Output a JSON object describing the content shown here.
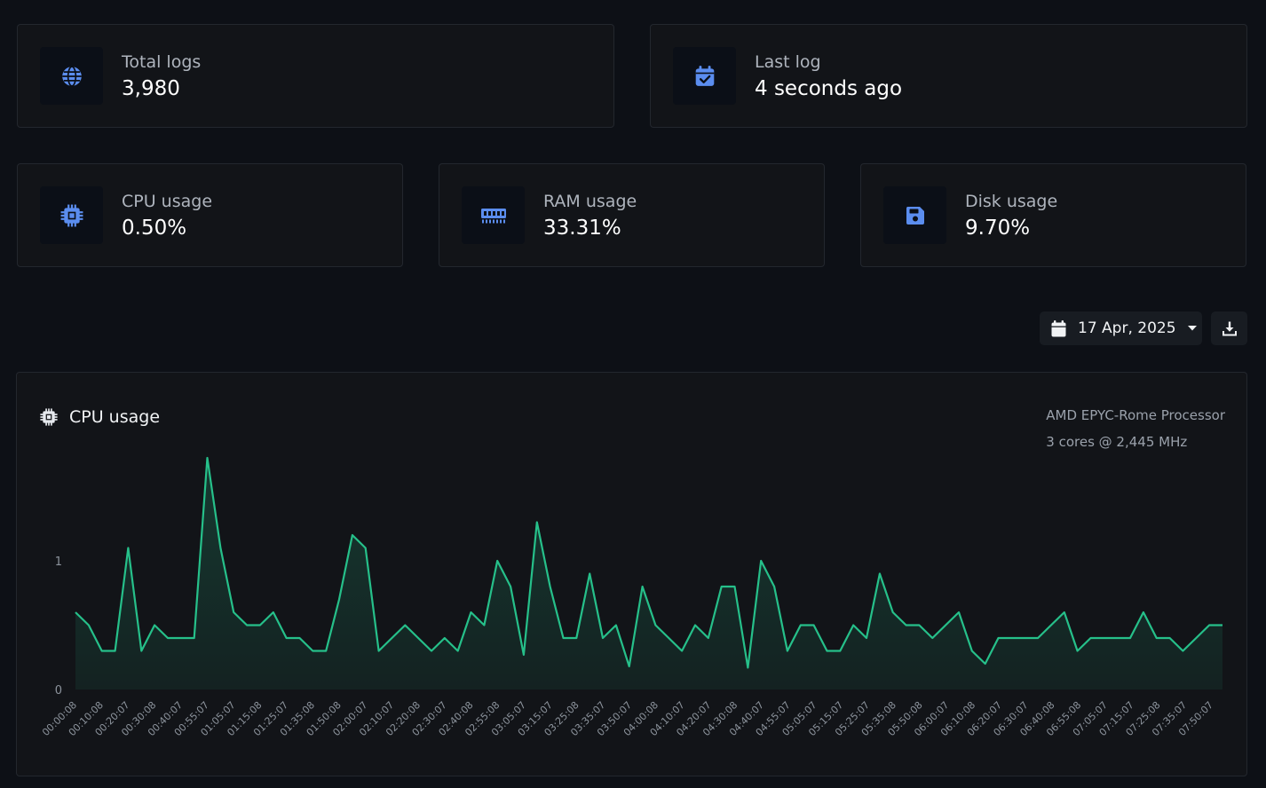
{
  "stats": {
    "total_logs": {
      "label": "Total logs",
      "value": "3,980",
      "icon": "globe-icon"
    },
    "last_log": {
      "label": "Last log",
      "value": "4 seconds ago",
      "icon": "calendar-check-icon"
    },
    "cpu": {
      "label": "CPU usage",
      "value": "0.50%",
      "icon": "cpu-chip-icon"
    },
    "ram": {
      "label": "RAM usage",
      "value": "33.31%",
      "icon": "memory-icon"
    },
    "disk": {
      "label": "Disk usage",
      "value": "9.70%",
      "icon": "floppy-disk-icon"
    }
  },
  "toolbar": {
    "date_label": "17 Apr, 2025",
    "calendar_icon": "calendar-icon",
    "caret_icon": "caret-down-icon",
    "download_icon": "download-icon"
  },
  "chart_panel": {
    "title": "CPU usage",
    "processor": "AMD EPYC-Rome Processor",
    "cores": "3 cores @ 2,445 MHz"
  },
  "colors": {
    "accent": "#5b8def",
    "line": "#26c08a",
    "background": "#0d1016",
    "card": "#121418"
  },
  "chart_data": {
    "type": "area",
    "title": "",
    "xlabel": "",
    "ylabel": "",
    "ylim": [
      0,
      1.8
    ],
    "yticks": [
      0,
      1
    ],
    "grid": false,
    "x_tick_labels": [
      "00:00:08",
      "00:10:08",
      "00:20:07",
      "00:30:08",
      "00:40:07",
      "00:55:07",
      "01:05:07",
      "01:15:08",
      "01:25:07",
      "01:35:08",
      "01:50:08",
      "02:00:07",
      "02:10:07",
      "02:20:08",
      "02:30:07",
      "02:40:08",
      "02:55:08",
      "03:05:07",
      "03:15:07",
      "03:25:08",
      "03:35:07",
      "03:50:07",
      "04:00:08",
      "04:10:07",
      "04:20:07",
      "04:30:08",
      "04:40:07",
      "04:55:07",
      "05:05:07",
      "05:15:07",
      "05:25:07",
      "05:35:08",
      "05:50:08",
      "06:00:07",
      "06:10:08",
      "06:20:07",
      "06:30:07",
      "06:40:08",
      "06:55:08",
      "07:05:07",
      "07:15:07",
      "07:25:08",
      "07:35:07",
      "07:50:07"
    ],
    "series": [
      {
        "values": [
          0.6,
          0.5,
          0.3,
          0.3,
          1.1,
          0.3,
          0.5,
          0.4,
          0.4,
          0.4,
          1.8,
          1.1,
          0.6,
          0.5,
          0.5,
          0.6,
          0.4,
          0.4,
          0.3,
          0.3,
          0.7,
          1.2,
          1.1,
          0.3,
          0.4,
          0.5,
          0.4,
          0.3,
          0.4,
          0.3,
          0.6,
          0.5,
          1.0,
          0.8,
          0.27,
          1.3,
          0.8,
          0.4,
          0.4,
          0.9,
          0.4,
          0.5,
          0.18,
          0.8,
          0.5,
          0.4,
          0.3,
          0.5,
          0.4,
          0.8,
          0.8,
          0.17,
          1.0,
          0.8,
          0.3,
          0.5,
          0.5,
          0.3,
          0.3,
          0.5,
          0.4,
          0.9,
          0.6,
          0.5,
          0.5,
          0.4,
          0.5,
          0.6,
          0.3,
          0.2,
          0.4,
          0.4,
          0.4,
          0.4,
          0.5,
          0.6,
          0.3,
          0.4,
          0.4,
          0.4,
          0.4,
          0.6,
          0.4,
          0.4,
          0.3,
          0.4,
          0.5,
          0.5
        ]
      }
    ]
  }
}
